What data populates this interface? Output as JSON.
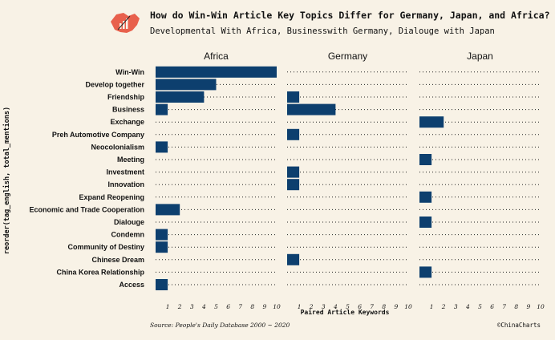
{
  "title": "How do Win-Win Article Key Topics Differ for Germany, Japan, and Africa?",
  "subtitle": "Developmental With Africa, Businesswith Germany, Dialouge with Japan",
  "source": "Source: People's Daily Database   2000 ~ 2020",
  "credit": "©ChinaCharts",
  "logo_icon": "china-map-chart-logo-icon",
  "colors": {
    "background": "#f8f2e6",
    "bar": "#0d3f6e",
    "logo": "#e8604c"
  },
  "chart_data": {
    "type": "bar",
    "orientation": "horizontal",
    "xlabel": "Paired Article Keywords",
    "ylabel": "reorder(tag_english, total_mentions)",
    "xlim": [
      0,
      10
    ],
    "xticks": [
      1,
      2,
      3,
      4,
      5,
      6,
      7,
      8,
      9,
      10
    ],
    "grid": "dotted horizontal",
    "categories": [
      "Win-Win",
      "Develop together",
      "Friendship",
      "Business",
      "Exchange",
      "Preh Automotive Company",
      "Neocolonialism",
      "Meeting",
      "Investment",
      "Innovation",
      "Expand Reopening",
      "Economic and Trade Cooperation",
      "Dialouge",
      "Condemn",
      "Community of Destiny",
      "Chinese Dream",
      "China Korea Relationship",
      "Access"
    ],
    "facets": [
      {
        "name": "Africa",
        "values": [
          10,
          5,
          4,
          1,
          0,
          0,
          1,
          0,
          0,
          0,
          0,
          2,
          0,
          1,
          1,
          0,
          0,
          1
        ]
      },
      {
        "name": "Germany",
        "values": [
          0,
          0,
          1,
          4,
          0,
          1,
          0,
          0,
          1,
          1,
          0,
          0,
          0,
          0,
          0,
          1,
          0,
          0
        ]
      },
      {
        "name": "Japan",
        "values": [
          0,
          0,
          0,
          0,
          2,
          0,
          0,
          1,
          0,
          0,
          1,
          0,
          1,
          0,
          0,
          0,
          1,
          0
        ]
      }
    ]
  }
}
